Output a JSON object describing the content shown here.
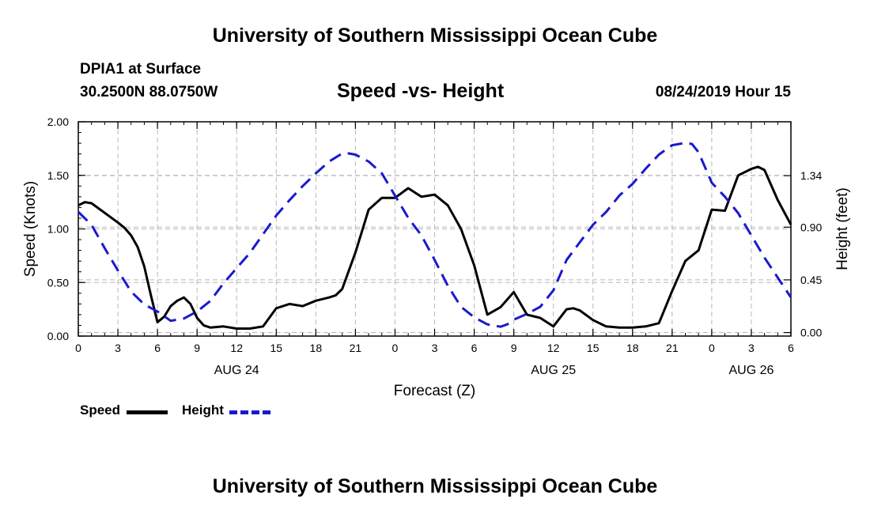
{
  "header": {
    "top_title": "University of Southern Mississippi Ocean Cube",
    "station": "DPIA1 at Surface",
    "location": "30.2500N 88.0750W",
    "plot_title": "Speed -vs- Height",
    "timestamp": "08/24/2019 Hour 15"
  },
  "footer": {
    "bottom_title": "University of Southern Mississippi Ocean Cube"
  },
  "legend": {
    "speed_label": "Speed",
    "height_label": "Height"
  },
  "colors": {
    "speed": "#000000",
    "height": "#1a1acc",
    "grid": "#b8b8b8"
  },
  "chart_data": {
    "type": "line",
    "xlabel": "Forecast (Z)",
    "ylabel_left": "Speed (Knots)",
    "ylabel_right": "Height (feet)",
    "x_range_hours": [
      0,
      54
    ],
    "left_ylim": [
      0,
      2.0
    ],
    "right_ylim": [
      -0.03,
      1.8
    ],
    "x_ticks": [
      {
        "hour": 0,
        "label": "0"
      },
      {
        "hour": 3,
        "label": "3"
      },
      {
        "hour": 6,
        "label": "6"
      },
      {
        "hour": 9,
        "label": "9"
      },
      {
        "hour": 12,
        "label": "12"
      },
      {
        "hour": 15,
        "label": "15"
      },
      {
        "hour": 18,
        "label": "18"
      },
      {
        "hour": 21,
        "label": "21"
      },
      {
        "hour": 24,
        "label": "0"
      },
      {
        "hour": 27,
        "label": "3"
      },
      {
        "hour": 30,
        "label": "6"
      },
      {
        "hour": 33,
        "label": "9"
      },
      {
        "hour": 36,
        "label": "12"
      },
      {
        "hour": 39,
        "label": "15"
      },
      {
        "hour": 42,
        "label": "18"
      },
      {
        "hour": 45,
        "label": "21"
      },
      {
        "hour": 48,
        "label": "0"
      },
      {
        "hour": 51,
        "label": "3"
      },
      {
        "hour": 54,
        "label": "6"
      }
    ],
    "date_labels": [
      {
        "hour": 12,
        "label": "AUG 24"
      },
      {
        "hour": 36,
        "label": "AUG 25"
      },
      {
        "hour": 51,
        "label": "AUG 26"
      }
    ],
    "left_ticks": [
      {
        "value": 0,
        "label": "0.00"
      },
      {
        "value": 0.5,
        "label": "0.50"
      },
      {
        "value": 1.0,
        "label": "1.00"
      },
      {
        "value": 1.5,
        "label": "1.50"
      },
      {
        "value": 2.0,
        "label": "2.00"
      }
    ],
    "right_ticks": [
      {
        "value": 0.0,
        "label": "0.00"
      },
      {
        "value": 0.45,
        "label": "0.45"
      },
      {
        "value": 0.9,
        "label": "0.90"
      },
      {
        "value": 1.34,
        "label": "1.34"
      }
    ],
    "series": [
      {
        "name": "Speed",
        "axis": "left",
        "style": "solid",
        "x": [
          0,
          0.5,
          1,
          2,
          3,
          3.5,
          4,
          4.5,
          5,
          5.5,
          6,
          6.5,
          7,
          7.5,
          8,
          8.5,
          9,
          9.5,
          10,
          11,
          12,
          13,
          14,
          15,
          16,
          17,
          18,
          19,
          19.5,
          20,
          21,
          22,
          23,
          24,
          25,
          26,
          27,
          28,
          29,
          30,
          31,
          32,
          33,
          34,
          35,
          36,
          37,
          37.5,
          38,
          39,
          40,
          41,
          42,
          43,
          44,
          45,
          46,
          47,
          48,
          49,
          50,
          51,
          51.5,
          52,
          53,
          54
        ],
        "values": [
          1.22,
          1.25,
          1.24,
          1.15,
          1.06,
          1.01,
          0.94,
          0.83,
          0.65,
          0.38,
          0.13,
          0.18,
          0.28,
          0.33,
          0.36,
          0.3,
          0.17,
          0.1,
          0.08,
          0.09,
          0.07,
          0.07,
          0.09,
          0.26,
          0.3,
          0.28,
          0.33,
          0.36,
          0.38,
          0.44,
          0.78,
          1.18,
          1.29,
          1.29,
          1.38,
          1.3,
          1.32,
          1.22,
          1.0,
          0.66,
          0.2,
          0.27,
          0.41,
          0.2,
          0.17,
          0.09,
          0.25,
          0.26,
          0.24,
          0.15,
          0.09,
          0.08,
          0.08,
          0.09,
          0.12,
          0.42,
          0.7,
          0.8,
          1.18,
          1.17,
          1.5,
          1.56,
          1.58,
          1.55,
          1.27,
          1.04
        ]
      },
      {
        "name": "Height",
        "axis": "right",
        "style": "dashed",
        "x": [
          0,
          1,
          2,
          3,
          4,
          5,
          6,
          7,
          8,
          9,
          10,
          11,
          12,
          13,
          14,
          15,
          16,
          17,
          18,
          19,
          20,
          20.5,
          21,
          22,
          23,
          24,
          25,
          26,
          27,
          28,
          29,
          30,
          31,
          32,
          32.5,
          33,
          34,
          35,
          36,
          37,
          38,
          39,
          40,
          41,
          42,
          43,
          44,
          45,
          46,
          46.5,
          47,
          48,
          49,
          50,
          51,
          52,
          53,
          54
        ],
        "values": [
          1.03,
          0.92,
          0.72,
          0.53,
          0.35,
          0.24,
          0.18,
          0.1,
          0.12,
          0.18,
          0.27,
          0.42,
          0.55,
          0.68,
          0.84,
          1.0,
          1.13,
          1.25,
          1.36,
          1.46,
          1.53,
          1.53,
          1.52,
          1.46,
          1.36,
          1.17,
          0.98,
          0.83,
          0.62,
          0.4,
          0.22,
          0.13,
          0.07,
          0.05,
          0.07,
          0.11,
          0.16,
          0.22,
          0.36,
          0.62,
          0.77,
          0.92,
          1.03,
          1.17,
          1.27,
          1.4,
          1.52,
          1.6,
          1.62,
          1.61,
          1.54,
          1.28,
          1.16,
          1.02,
          0.83,
          0.64,
          0.47,
          0.3
        ]
      }
    ]
  }
}
